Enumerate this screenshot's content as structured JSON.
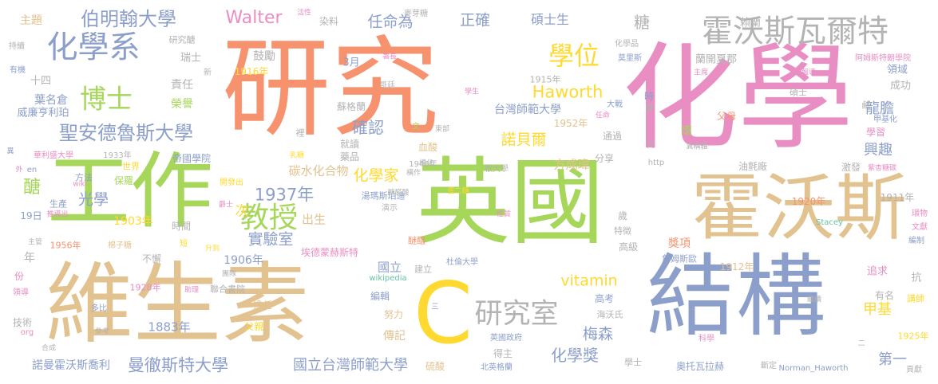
{
  "colors": {
    "orange": "#f7926e",
    "green": "#a6d75a",
    "blue": "#8c9fcb",
    "pink": "#e88ec3",
    "tan": "#e2c28e",
    "gray": "#b3b3b3",
    "yellow": "#ffd92f",
    "teal": "#66c2a5"
  },
  "words": [
    {
      "text": "研究",
      "color": "orange"
    },
    {
      "text": "化學",
      "color": "pink"
    },
    {
      "text": "英國",
      "color": "green"
    },
    {
      "text": "工作",
      "color": "green"
    },
    {
      "text": "維生素",
      "color": "tan"
    },
    {
      "text": "霍沃斯",
      "color": "tan"
    },
    {
      "text": "結構",
      "color": "blue"
    },
    {
      "text": "C",
      "color": "yellow"
    },
    {
      "text": "霍沃斯瓦爾特",
      "color": "gray"
    },
    {
      "text": "化學系",
      "color": "blue"
    },
    {
      "text": "教授",
      "color": "green"
    },
    {
      "text": "研究室",
      "color": "gray"
    },
    {
      "text": "博士",
      "color": "green"
    },
    {
      "text": "學位",
      "color": "yellow"
    },
    {
      "text": "聖安德魯斯大學",
      "color": "blue"
    },
    {
      "text": "伯明翰大學",
      "color": "blue"
    },
    {
      "text": "Walter",
      "color": "pink"
    },
    {
      "text": "Haworth",
      "color": "yellow"
    },
    {
      "text": "vitamin",
      "color": "yellow"
    },
    {
      "text": "曼徹斯特大學",
      "color": "blue"
    },
    {
      "text": "國立台灣師範大學",
      "color": "blue"
    },
    {
      "text": "化學獎",
      "color": "blue"
    },
    {
      "text": "1937年",
      "color": "blue"
    },
    {
      "text": "實驗室",
      "color": "blue"
    },
    {
      "text": "任命為",
      "color": "blue"
    },
    {
      "text": "正確",
      "color": "blue"
    },
    {
      "text": "糖",
      "color": "gray"
    },
    {
      "text": "碩士生",
      "color": "blue"
    },
    {
      "text": "確認",
      "color": "blue"
    },
    {
      "text": "諾貝爾",
      "color": "yellow"
    },
    {
      "text": "化學家",
      "color": "yellow"
    },
    {
      "text": "光學",
      "color": "blue"
    },
    {
      "text": "醣",
      "color": "green"
    },
    {
      "text": "出生",
      "color": "tan"
    },
    {
      "text": "次",
      "color": "yellow"
    },
    {
      "text": "梅森",
      "color": "blue"
    },
    {
      "text": "甲基",
      "color": "yellow"
    },
    {
      "text": "第一",
      "color": "blue"
    },
    {
      "text": "龍膽",
      "color": "blue"
    },
    {
      "text": "興趣",
      "color": "blue"
    },
    {
      "text": "台灣師範大學",
      "color": "blue"
    },
    {
      "text": "碳水化合物",
      "color": "tan"
    },
    {
      "text": "1883年",
      "color": "blue"
    },
    {
      "text": "1903年",
      "color": "yellow"
    },
    {
      "text": "1906年",
      "color": "blue"
    },
    {
      "text": "傳記",
      "color": "tan"
    },
    {
      "text": "諾曼霍沃斯喬利",
      "color": "blue"
    },
    {
      "text": "國立",
      "color": "blue"
    },
    {
      "text": "方成瑋",
      "color": "tan"
    },
    {
      "text": "鼓勵",
      "color": "gray"
    },
    {
      "text": "葉名倉",
      "color": "blue"
    },
    {
      "text": "威廉亨利珀",
      "color": "blue"
    },
    {
      "text": "責任",
      "color": "gray"
    },
    {
      "text": "榮譽",
      "color": "green"
    },
    {
      "text": "主題",
      "color": "tan"
    },
    {
      "text": "領域",
      "color": "blue"
    },
    {
      "text": "成功",
      "color": "gray"
    },
    {
      "text": "3月",
      "color": "blue"
    },
    {
      "text": "1916年",
      "color": "yellow"
    },
    {
      "text": "1915年",
      "color": "gray"
    },
    {
      "text": "1952年",
      "color": "tan"
    },
    {
      "text": "1920年",
      "color": "orange"
    },
    {
      "text": "1912年",
      "color": "tan"
    },
    {
      "text": "1911年",
      "color": "gray"
    },
    {
      "text": "1948年",
      "color": "gray"
    },
    {
      "text": "1933年",
      "color": "gray"
    },
    {
      "text": "1956年",
      "color": "orange"
    },
    {
      "text": "1928年",
      "color": "pink"
    },
    {
      "text": "1925年",
      "color": "yellow"
    },
    {
      "text": "瑞士",
      "color": "gray"
    },
    {
      "text": "十四",
      "color": "gray"
    },
    {
      "text": "染料",
      "color": "gray"
    },
    {
      "text": "麥芽糖",
      "color": "gray"
    },
    {
      "text": "賴蘭",
      "color": "gray"
    },
    {
      "text": "化學品",
      "color": "gray"
    },
    {
      "text": "莫里斯",
      "color": "blue"
    },
    {
      "text": "阿姆斯特朗學院",
      "color": "pink"
    },
    {
      "text": "蘭開夏郡",
      "color": "gray"
    },
    {
      "text": "研究醣",
      "color": "gray"
    },
    {
      "text": "持續",
      "color": "gray"
    },
    {
      "text": "有機",
      "color": "blue"
    },
    {
      "text": "活性",
      "color": "pink"
    },
    {
      "text": "哥廷",
      "color": "gray"
    },
    {
      "text": "蘇格蘭",
      "color": "gray"
    },
    {
      "text": "父母",
      "color": "orange"
    },
    {
      "text": "學習",
      "color": "pink"
    },
    {
      "text": "甲基化",
      "color": "blue"
    },
    {
      "text": "就讀",
      "color": "gray"
    },
    {
      "text": "藥品",
      "color": "gray"
    },
    {
      "text": "血酸",
      "color": "tan"
    },
    {
      "text": "通過",
      "color": "gray"
    },
    {
      "text": "分享",
      "color": "gray"
    },
    {
      "text": "壞",
      "color": "green"
    },
    {
      "text": "油氈廠",
      "color": "gray"
    },
    {
      "text": "激發",
      "color": "gray"
    },
    {
      "text": "帝國學院",
      "color": "blue"
    },
    {
      "text": "世界",
      "color": "yellow"
    },
    {
      "text": "方法",
      "color": "blue"
    },
    {
      "text": "保羅",
      "color": "green"
    },
    {
      "text": "生產",
      "color": "blue"
    },
    {
      "text": "19日",
      "color": "blue"
    },
    {
      "text": "年",
      "color": "gray"
    },
    {
      "text": "份",
      "color": "pink"
    },
    {
      "text": "時間",
      "color": "gray"
    },
    {
      "text": "不懈",
      "color": "gray"
    },
    {
      "text": "湯瑪斯珀迪",
      "color": "blue"
    },
    {
      "text": "根大學",
      "color": "gray"
    },
    {
      "text": "歲",
      "color": "gray"
    },
    {
      "text": "特徵",
      "color": "gray"
    },
    {
      "text": "高級",
      "color": "gray"
    },
    {
      "text": "獎項",
      "color": "orange"
    },
    {
      "text": "詹姆斯歐",
      "color": "blue"
    },
    {
      "text": "追求",
      "color": "pink"
    },
    {
      "text": "抗",
      "color": "gray"
    },
    {
      "text": "有名",
      "color": "gray"
    },
    {
      "text": "講師",
      "color": "yellow"
    },
    {
      "text": "編輯",
      "color": "blue"
    },
    {
      "text": "努力",
      "color": "tan"
    },
    {
      "text": "高考",
      "color": "blue"
    },
    {
      "text": "海沃氏",
      "color": "gray"
    },
    {
      "text": "英國政府",
      "color": "blue"
    },
    {
      "text": "得主",
      "color": "gray"
    },
    {
      "text": "學士",
      "color": "gray"
    },
    {
      "text": "父親",
      "color": "yellow"
    },
    {
      "text": "技術",
      "color": "gray"
    },
    {
      "text": "聯合書院",
      "color": "gray"
    },
    {
      "text": "擔任",
      "color": "tan"
    },
    {
      "text": "硫酸",
      "color": "tan"
    },
    {
      "text": "奧托瓦拉赫",
      "color": "blue"
    },
    {
      "text": "Norman_Haworth",
      "color": "blue"
    },
    {
      "text": "Stacey",
      "color": "teal"
    },
    {
      "text": "wikipedia",
      "color": "teal"
    },
    {
      "text": "http",
      "color": "gray"
    },
    {
      "text": "en",
      "color": "blue"
    },
    {
      "text": "org",
      "color": "pink"
    },
    {
      "text": "wiki",
      "color": "pink"
    },
    {
      "text": "棉子糖",
      "color": "tan"
    },
    {
      "text": "埃德蒙赫斯特",
      "color": "pink"
    },
    {
      "text": "華利盛大學",
      "color": "pink"
    },
    {
      "text": "鹼",
      "color": "gray"
    },
    {
      "text": "紫杏糖碳",
      "color": "pink"
    },
    {
      "text": "異構體",
      "color": "gray"
    },
    {
      "text": "東部",
      "color": "gray"
    },
    {
      "text": "文",
      "color": "green"
    },
    {
      "text": "乳糖",
      "color": "yellow"
    },
    {
      "text": "開發出",
      "color": "yellow"
    },
    {
      "text": "升到",
      "color": "yellow"
    },
    {
      "text": "短",
      "color": "yellow"
    },
    {
      "text": "爵士",
      "color": "pink"
    },
    {
      "text": "推導出",
      "color": "pink"
    },
    {
      "text": "主管",
      "color": "gray"
    },
    {
      "text": "構化",
      "color": "gray"
    },
    {
      "text": "演示",
      "color": "gray"
    },
    {
      "text": "性質",
      "color": "pink"
    },
    {
      "text": "糖醛酸",
      "color": "gray"
    },
    {
      "text": "醚醯",
      "color": "orange"
    },
    {
      "text": "建立",
      "color": "gray"
    },
    {
      "text": "杜倫大學",
      "color": "blue"
    },
    {
      "text": "北英格蘭",
      "color": "blue"
    },
    {
      "text": "斷定",
      "color": "gray"
    },
    {
      "text": "頁獻",
      "color": "gray"
    },
    {
      "text": "編制",
      "color": "blue"
    },
    {
      "text": "文獻",
      "color": "pink"
    },
    {
      "text": "環物",
      "color": "pink"
    },
    {
      "text": "科學",
      "color": "pink"
    },
    {
      "text": "繼續",
      "color": "gray"
    },
    {
      "text": "領導",
      "color": "pink"
    },
    {
      "text": "多比",
      "color": "blue"
    },
    {
      "text": "參考",
      "color": "gray"
    },
    {
      "text": "合成",
      "color": "gray"
    },
    {
      "text": "團隊",
      "color": "gray"
    },
    {
      "text": "助理",
      "color": "pink"
    },
    {
      "text": "大戰",
      "color": "blue"
    },
    {
      "text": "時",
      "color": "blue"
    },
    {
      "text": "要",
      "color": "gray"
    },
    {
      "text": "究",
      "color": "gray"
    },
    {
      "text": "新",
      "color": "gray"
    },
    {
      "text": "裡",
      "color": "gray"
    },
    {
      "text": "外",
      "color": "pink"
    },
    {
      "text": "異",
      "color": "blue"
    },
    {
      "text": "學生",
      "color": "pink"
    },
    {
      "text": "任命",
      "color": "pink"
    },
    {
      "text": "主席",
      "color": "pink"
    },
    {
      "text": "報導",
      "color": "pink"
    },
    {
      "text": "署長",
      "color": "pink"
    },
    {
      "text": "構作",
      "color": "gray"
    },
    {
      "text": "蛋二糖",
      "color": "yellow"
    },
    {
      "text": "碩士",
      "color": "gray"
    },
    {
      "text": "二",
      "color": "gray"
    },
    {
      "text": "三",
      "color": "blue"
    }
  ]
}
